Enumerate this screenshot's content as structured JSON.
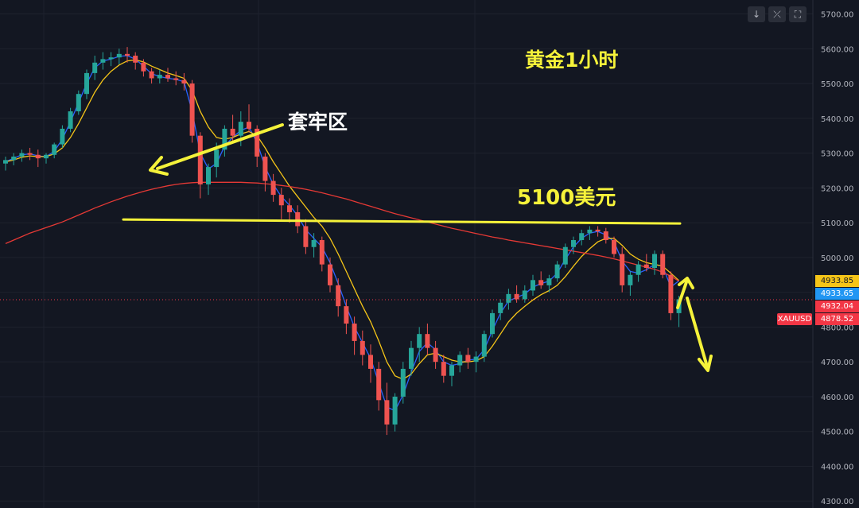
{
  "annotations": {
    "chart_title": "黄金1小时",
    "trap_zone": "套牢区",
    "key_level": "5100美元"
  },
  "toolbar": {
    "buttons": [
      {
        "name": "scroll-down-button",
        "icon": "arrow-down-icon",
        "glyph": "↓"
      },
      {
        "name": "collapse-button",
        "icon": "collapse-icon",
        "glyph": "⤫"
      },
      {
        "name": "fullscreen-button",
        "icon": "fullscreen-icon",
        "glyph": "⛶"
      }
    ]
  },
  "price_tags": {
    "symbol": "XAUUSD",
    "tags": [
      {
        "name": "price-tag-ma-yellow",
        "price": 4933.85,
        "label": "4933.85",
        "color": "#f5c518",
        "text_color": "#131722"
      },
      {
        "name": "price-tag-ma-blue",
        "price": 4933.65,
        "label": "4933.65",
        "color": "#2196f3",
        "text_color": "#ffffff"
      },
      {
        "name": "price-tag-ma-red",
        "price": 4932.04,
        "label": "4932.04",
        "color": "#f23645",
        "text_color": "#ffffff"
      },
      {
        "name": "price-tag-last",
        "price": 4878.52,
        "label": "4878.52",
        "color": "#f23645",
        "text_color": "#ffffff"
      }
    ]
  },
  "colors": {
    "background": "#131722",
    "grid": "#1e222d",
    "up": "#26a69a",
    "down": "#ef5350",
    "ma_fast": "#2962ff",
    "ma_slow": "#f5c518",
    "ma_long": "#e53935",
    "annotation": "#f5f23a",
    "level_line": "#f5f23a"
  },
  "chart_data": {
    "type": "candlestick",
    "title": "黄金1小时",
    "ylim": [
      4280,
      5740
    ],
    "yticks": [
      4300,
      4400,
      4500,
      4600,
      4700,
      4800,
      4900,
      5000,
      5100,
      5200,
      5300,
      5400,
      5500,
      5600,
      5700
    ],
    "ytick_labels": [
      "4300.00",
      "4400.00",
      "4500.00",
      "4600.00",
      "4700.00",
      "4800.00",
      "4900.00",
      "5000.00",
      "5100.00",
      "5200.00",
      "5300.00",
      "5400.00",
      "5500.00",
      "5600.00",
      "5700.00"
    ],
    "current_price": 4878.52,
    "level_line": 5100,
    "candles": [
      [
        5270,
        5290,
        5250,
        5280
      ],
      [
        5280,
        5300,
        5265,
        5290
      ],
      [
        5290,
        5310,
        5275,
        5300
      ],
      [
        5300,
        5315,
        5280,
        5295
      ],
      [
        5295,
        5310,
        5260,
        5285
      ],
      [
        5285,
        5300,
        5270,
        5295
      ],
      [
        5295,
        5330,
        5285,
        5325
      ],
      [
        5325,
        5380,
        5315,
        5370
      ],
      [
        5370,
        5430,
        5360,
        5420
      ],
      [
        5420,
        5480,
        5410,
        5470
      ],
      [
        5470,
        5540,
        5455,
        5530
      ],
      [
        5530,
        5580,
        5510,
        5560
      ],
      [
        5560,
        5590,
        5540,
        5570
      ],
      [
        5570,
        5590,
        5550,
        5575
      ],
      [
        5575,
        5600,
        5555,
        5585
      ],
      [
        5585,
        5605,
        5560,
        5580
      ],
      [
        5580,
        5590,
        5540,
        5560
      ],
      [
        5560,
        5570,
        5520,
        5535
      ],
      [
        5535,
        5545,
        5500,
        5515
      ],
      [
        5515,
        5540,
        5500,
        5525
      ],
      [
        5525,
        5545,
        5505,
        5515
      ],
      [
        5515,
        5535,
        5495,
        5510
      ],
      [
        5510,
        5530,
        5480,
        5500
      ],
      [
        5500,
        5510,
        5330,
        5350
      ],
      [
        5350,
        5360,
        5170,
        5210
      ],
      [
        5210,
        5270,
        5180,
        5260
      ],
      [
        5260,
        5330,
        5230,
        5310
      ],
      [
        5310,
        5380,
        5290,
        5370
      ],
      [
        5370,
        5410,
        5330,
        5350
      ],
      [
        5350,
        5420,
        5320,
        5390
      ],
      [
        5390,
        5440,
        5360,
        5370
      ],
      [
        5370,
        5380,
        5260,
        5290
      ],
      [
        5290,
        5300,
        5190,
        5220
      ],
      [
        5220,
        5240,
        5160,
        5180
      ],
      [
        5180,
        5200,
        5110,
        5150
      ],
      [
        5150,
        5170,
        5100,
        5130
      ],
      [
        5130,
        5150,
        5070,
        5090
      ],
      [
        5090,
        5110,
        5010,
        5030
      ],
      [
        5030,
        5070,
        5000,
        5050
      ],
      [
        5050,
        5060,
        4960,
        4980
      ],
      [
        4980,
        5000,
        4900,
        4920
      ],
      [
        4920,
        4940,
        4830,
        4860
      ],
      [
        4860,
        4880,
        4780,
        4810
      ],
      [
        4810,
        4830,
        4720,
        4760
      ],
      [
        4760,
        4790,
        4690,
        4720
      ],
      [
        4720,
        4750,
        4640,
        4680
      ],
      [
        4680,
        4700,
        4560,
        4590
      ],
      [
        4590,
        4640,
        4490,
        4520
      ],
      [
        4520,
        4610,
        4500,
        4600
      ],
      [
        4600,
        4700,
        4580,
        4680
      ],
      [
        4680,
        4760,
        4660,
        4740
      ],
      [
        4740,
        4800,
        4700,
        4780
      ],
      [
        4780,
        4810,
        4720,
        4740
      ],
      [
        4740,
        4760,
        4680,
        4700
      ],
      [
        4700,
        4720,
        4640,
        4660
      ],
      [
        4660,
        4700,
        4630,
        4690
      ],
      [
        4690,
        4730,
        4670,
        4720
      ],
      [
        4720,
        4740,
        4680,
        4700
      ],
      [
        4700,
        4730,
        4670,
        4715
      ],
      [
        4715,
        4790,
        4700,
        4780
      ],
      [
        4780,
        4850,
        4770,
        4840
      ],
      [
        4840,
        4880,
        4820,
        4870
      ],
      [
        4870,
        4910,
        4850,
        4895
      ],
      [
        4895,
        4920,
        4870,
        4880
      ],
      [
        4880,
        4920,
        4870,
        4905
      ],
      [
        4905,
        4950,
        4890,
        4935
      ],
      [
        4935,
        4960,
        4910,
        4920
      ],
      [
        4920,
        4950,
        4900,
        4940
      ],
      [
        4940,
        4990,
        4930,
        4980
      ],
      [
        4980,
        5040,
        4970,
        5030
      ],
      [
        5030,
        5060,
        5010,
        5050
      ],
      [
        5050,
        5080,
        5035,
        5070
      ],
      [
        5070,
        5090,
        5050,
        5080
      ],
      [
        5080,
        5090,
        5060,
        5075
      ],
      [
        5075,
        5085,
        5040,
        5050
      ],
      [
        5050,
        5060,
        5000,
        5010
      ],
      [
        5010,
        5030,
        4900,
        4920
      ],
      [
        4920,
        4960,
        4890,
        4950
      ],
      [
        4950,
        4990,
        4930,
        4980
      ],
      [
        4980,
        5010,
        4960,
        4970
      ],
      [
        4970,
        5020,
        4950,
        5010
      ],
      [
        5010,
        5020,
        4940,
        4950
      ],
      [
        4950,
        4960,
        4820,
        4840
      ],
      [
        4840,
        4890,
        4800,
        4880
      ]
    ],
    "moving_averages": [
      {
        "name": "MA fast",
        "color": "#2962ff",
        "values": [
          5275,
          5285,
          5295,
          5298,
          5292,
          5290,
          5305,
          5340,
          5390,
          5445,
          5500,
          5545,
          5565,
          5570,
          5578,
          5580,
          5570,
          5550,
          5528,
          5520,
          5515,
          5512,
          5505,
          5420,
          5300,
          5255,
          5270,
          5320,
          5345,
          5365,
          5375,
          5330,
          5260,
          5210,
          5175,
          5150,
          5120,
          5080,
          5055,
          5030,
          4985,
          4925,
          4860,
          4800,
          4755,
          4710,
          4640,
          4570,
          4560,
          4605,
          4670,
          4730,
          4755,
          4735,
          4700,
          4690,
          4695,
          4705,
          4708,
          4735,
          4790,
          4840,
          4875,
          4885,
          4895,
          4915,
          4925,
          4932,
          4955,
          4995,
          5030,
          5055,
          5070,
          5075,
          5065,
          5045,
          4990,
          4960,
          4955,
          4965,
          4980,
          4975,
          4915,
          4933
        ]
      },
      {
        "name": "MA slow",
        "color": "#f5c518",
        "values": [
          5275,
          5280,
          5288,
          5292,
          5290,
          5290,
          5298,
          5315,
          5345,
          5385,
          5430,
          5475,
          5510,
          5535,
          5553,
          5565,
          5568,
          5562,
          5550,
          5540,
          5530,
          5523,
          5515,
          5480,
          5420,
          5375,
          5345,
          5340,
          5345,
          5355,
          5362,
          5350,
          5315,
          5275,
          5240,
          5205,
          5175,
          5145,
          5115,
          5090,
          5055,
          5010,
          4960,
          4910,
          4860,
          4815,
          4760,
          4700,
          4660,
          4650,
          4665,
          4695,
          4720,
          4725,
          4715,
          4705,
          4700,
          4700,
          4703,
          4715,
          4745,
          4780,
          4815,
          4840,
          4860,
          4878,
          4893,
          4905,
          4920,
          4945,
          4975,
          5003,
          5025,
          5045,
          5055,
          5055,
          5035,
          5010,
          4995,
          4985,
          4980,
          4975,
          4955,
          4934
        ]
      },
      {
        "name": "MA long",
        "color": "#e53935",
        "values": [
          5040,
          5050,
          5060,
          5070,
          5078,
          5086,
          5094,
          5102,
          5112,
          5122,
          5132,
          5142,
          5151,
          5160,
          5168,
          5176,
          5183,
          5190,
          5196,
          5201,
          5206,
          5210,
          5213,
          5215,
          5216,
          5216,
          5216,
          5216,
          5216,
          5216,
          5215,
          5214,
          5212,
          5210,
          5207,
          5204,
          5200,
          5196,
          5191,
          5186,
          5180,
          5174,
          5168,
          5161,
          5154,
          5147,
          5140,
          5133,
          5126,
          5120,
          5114,
          5108,
          5102,
          5096,
          5090,
          5084,
          5079,
          5074,
          5069,
          5064,
          5059,
          5055,
          5050,
          5046,
          5042,
          5038,
          5034,
          5030,
          5026,
          5022,
          5018,
          5014,
          5010,
          5006,
          5001,
          4996,
          4990,
          4984,
          4978,
          4972,
          4966,
          4958,
          4946,
          4932
        ]
      }
    ]
  }
}
